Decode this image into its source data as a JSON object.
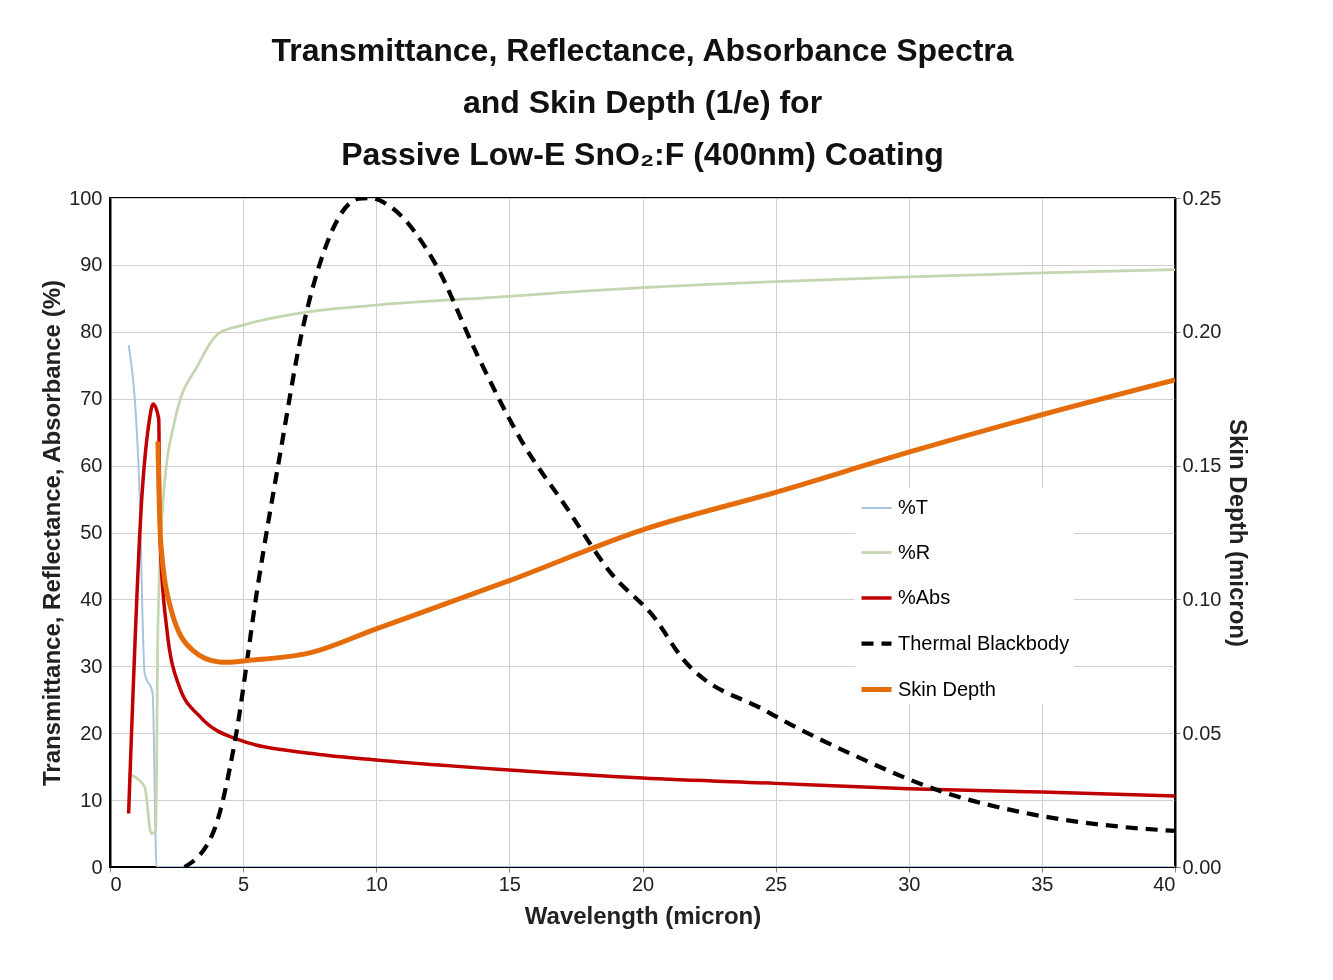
{
  "chart_data": {
    "type": "line",
    "title": "Transmittance, Reflectance, Absorbance Spectra\nand Skin Depth (1/e) for\nPassive Low-E SnO₂:F (400nm) Coating",
    "xlabel": "Wavelength (micron)",
    "ylabel": "Transmittance, Reflectance, Absorbance (%)",
    "y2label": "Skin Depth (micron)",
    "xlim": [
      0,
      40
    ],
    "xticks": [
      0,
      5,
      10,
      15,
      20,
      25,
      30,
      35,
      40
    ],
    "ylim": [
      0,
      100
    ],
    "yticks": [
      0,
      10,
      20,
      30,
      40,
      50,
      60,
      70,
      80,
      90,
      100
    ],
    "y2lim": [
      0,
      0.25
    ],
    "y2ticks": [
      {
        "value": 0,
        "label": "0.00"
      },
      0.05,
      {
        "value": 0.1,
        "label": "0.10"
      },
      0.15,
      {
        "value": 0.2,
        "label": "0.20"
      },
      0.25
    ],
    "grid": true,
    "legend": "right",
    "marker": "none",
    "series": [
      {
        "name": "%T",
        "color": "#a9c4e0",
        "line_style": "solid",
        "x": [
          0.7,
          1.1,
          1.3,
          1.6,
          1.75,
          5,
          10,
          20,
          30,
          40
        ],
        "values": [
          78,
          57,
          29,
          26,
          0,
          0,
          0,
          0,
          0,
          0
        ]
      },
      {
        "name": "%R",
        "color": "#c4d6b0",
        "line_style": "solid",
        "x": [
          0.7,
          1.3,
          1.55,
          1.72,
          1.8,
          2.0,
          2.45,
          3.3,
          4.1,
          5,
          7.5,
          10,
          15,
          17.5,
          20,
          25,
          30,
          35,
          40
        ],
        "values": [
          13.9,
          12,
          5,
          5.4,
          35.7,
          55,
          67,
          75,
          79.8,
          81,
          83,
          84,
          85.3,
          86,
          86.6,
          87.5,
          88.2,
          88.8,
          89.3
        ]
      },
      {
        "name": "%Abs",
        "color": "#c00000",
        "line_style": "solid",
        "x": [
          0.7,
          1.2,
          1.45,
          1.62,
          1.83,
          1.88,
          2.13,
          2.6,
          3.4,
          4.77,
          7.5,
          10,
          15,
          20,
          25,
          30,
          35,
          40
        ],
        "values": [
          8,
          55.5,
          66,
          69.2,
          67,
          49,
          35.7,
          27,
          22.4,
          19.1,
          17,
          16,
          14.5,
          13.3,
          12.5,
          11.7,
          11.2,
          10.6
        ]
      },
      {
        "name": "Thermal Blackbody",
        "color": "#000000",
        "line_style": "dashed",
        "x": [
          2.8,
          3.9,
          4.7,
          5.55,
          6.4,
          7.2,
          8.0,
          9.35,
          9.8,
          10.5,
          12.2,
          13.8,
          15.5,
          17.1,
          18.8,
          20.5,
          21.4,
          24.7,
          28,
          31.3,
          34.6,
          38,
          40
        ],
        "values": [
          0,
          5.4,
          19,
          42,
          62,
          79.8,
          91.6,
          99.9,
          100,
          98.8,
          90.3,
          76.5,
          63.4,
          54,
          44,
          37,
          31.7,
          23.2,
          16.6,
          11.2,
          7.9,
          6,
          5.4
        ]
      },
      {
        "name": "Skin Depth",
        "color": "#e46c0a",
        "line_style": "solid",
        "axis": "y2",
        "x": [
          1.8,
          1.9,
          2.3,
          3.1,
          4.1,
          4.5,
          5,
          7.5,
          10,
          15,
          20,
          25,
          30,
          35,
          40
        ],
        "values": [
          0.159,
          0.122,
          0.096,
          0.081,
          0.0766,
          0.0765,
          0.077,
          0.08,
          0.089,
          0.107,
          0.126,
          0.14,
          0.155,
          0.169,
          0.182
        ]
      }
    ]
  }
}
